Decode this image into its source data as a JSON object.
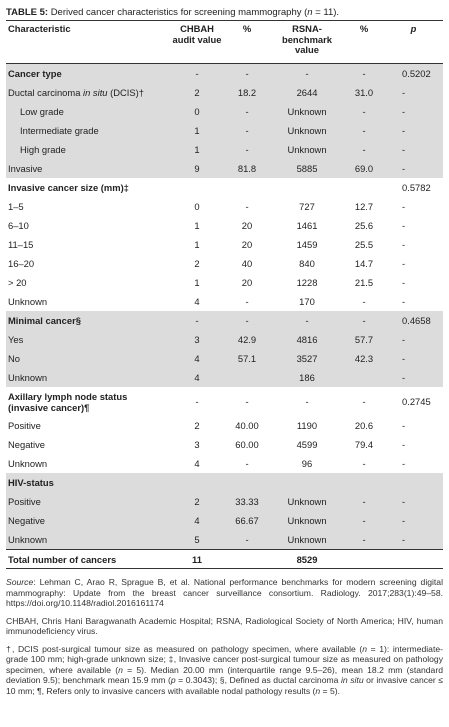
{
  "title": {
    "label": "TABLE 5:",
    "text": "Derived cancer characteristics for screening mammography (",
    "n_italic": "n",
    "n_value": " = 11)."
  },
  "headers": {
    "characteristic": "Characteristic",
    "chbah": "CHBAH audit value",
    "pct1": "%",
    "rsna": "RSNA-benchmark value",
    "pct2": "%",
    "p": "p"
  },
  "rows": [
    {
      "type": "sec",
      "shade": true,
      "label": "Cancer type",
      "v1": "-",
      "p1": "-",
      "v2": "-",
      "p2": "-",
      "p": "0.5202"
    },
    {
      "type": "dcis",
      "shade": true,
      "label_pre": "Ductal carcinoma ",
      "label_ital": "in situ",
      "label_post": " (DCIS)†",
      "v1": "2",
      "p1": "18.2",
      "v2": "2644",
      "p2": "31.0",
      "p": "-"
    },
    {
      "type": "ind",
      "shade": true,
      "label": "Low grade",
      "v1": "0",
      "p1": "-",
      "v2": "Unknown",
      "p2": "-",
      "p": "-"
    },
    {
      "type": "ind",
      "shade": true,
      "label": "Intermediate grade",
      "v1": "1",
      "p1": "-",
      "v2": "Unknown",
      "p2": "-",
      "p": "-"
    },
    {
      "type": "ind",
      "shade": true,
      "label": "High grade",
      "v1": "1",
      "p1": "-",
      "v2": "Unknown",
      "p2": "-",
      "p": "-"
    },
    {
      "type": "row",
      "shade": true,
      "label": "Invasive",
      "v1": "9",
      "p1": "81.8",
      "v2": "5885",
      "p2": "69.0",
      "p": "-"
    },
    {
      "type": "sec",
      "shade": false,
      "label": "Invasive cancer size (mm)‡",
      "v1": "",
      "p1": "",
      "v2": "",
      "p2": "",
      "p": "0.5782"
    },
    {
      "type": "row",
      "shade": false,
      "label": "1–5",
      "v1": "0",
      "p1": "-",
      "v2": "727",
      "p2": "12.7",
      "p": "-"
    },
    {
      "type": "row",
      "shade": false,
      "label": "6–10",
      "v1": "1",
      "p1": "20",
      "v2": "1461",
      "p2": "25.6",
      "p": "-"
    },
    {
      "type": "row",
      "shade": false,
      "label": "11–15",
      "v1": "1",
      "p1": "20",
      "v2": "1459",
      "p2": "25.5",
      "p": "-"
    },
    {
      "type": "row",
      "shade": false,
      "label": "16–20",
      "v1": "2",
      "p1": "40",
      "v2": "840",
      "p2": "14.7",
      "p": "-"
    },
    {
      "type": "row",
      "shade": false,
      "label": "> 20",
      "v1": "1",
      "p1": "20",
      "v2": "1228",
      "p2": "21.5",
      "p": "-"
    },
    {
      "type": "row",
      "shade": false,
      "label": "Unknown",
      "v1": "4",
      "p1": "-",
      "v2": "170",
      "p2": "-",
      "p": "-"
    },
    {
      "type": "sec",
      "shade": true,
      "label": "Minimal cancer§",
      "v1": "-",
      "p1": "-",
      "v2": "-",
      "p2": "-",
      "p": "0.4658"
    },
    {
      "type": "row",
      "shade": true,
      "label": "Yes",
      "v1": "3",
      "p1": "42.9",
      "v2": "4816",
      "p2": "57.7",
      "p": "-"
    },
    {
      "type": "row",
      "shade": true,
      "label": "No",
      "v1": "4",
      "p1": "57.1",
      "v2": "3527",
      "p2": "42.3",
      "p": "-"
    },
    {
      "type": "row",
      "shade": true,
      "label": "Unknown",
      "v1": "4",
      "p1": "",
      "v2": "186",
      "p2": "",
      "p": "-"
    },
    {
      "type": "sec-tall",
      "shade": false,
      "label": "Axillary lymph node status (invasive cancer)¶",
      "v1": "-",
      "p1": "-",
      "v2": "-",
      "p2": "-",
      "p": "0.2745"
    },
    {
      "type": "row",
      "shade": false,
      "label": "Positive",
      "v1": "2",
      "p1": "40.00",
      "v2": "1190",
      "p2": "20.6",
      "p": "-"
    },
    {
      "type": "row",
      "shade": false,
      "label": "Negative",
      "v1": "3",
      "p1": "60.00",
      "v2": "4599",
      "p2": "79.4",
      "p": "-"
    },
    {
      "type": "row",
      "shade": false,
      "label": "Unknown",
      "v1": "4",
      "p1": "-",
      "v2": "96",
      "p2": "-",
      "p": "-"
    },
    {
      "type": "sec",
      "shade": true,
      "label": "HIV-status",
      "v1": "",
      "p1": "",
      "v2": "",
      "p2": "",
      "p": ""
    },
    {
      "type": "row",
      "shade": true,
      "label": "Positive",
      "v1": "2",
      "p1": "33.33",
      "v2": "Unknown",
      "p2": "-",
      "p": "-"
    },
    {
      "type": "row",
      "shade": true,
      "label": "Negative",
      "v1": "4",
      "p1": "66.67",
      "v2": "Unknown",
      "p2": "-",
      "p": "-"
    },
    {
      "type": "row",
      "shade": true,
      "label": "Unknown",
      "v1": "5",
      "p1": "-",
      "v2": "Unknown",
      "p2": "-",
      "p": "-"
    },
    {
      "type": "total",
      "shade": false,
      "label": "Total number of cancers",
      "v1": "11",
      "p1": "",
      "v2": "8529",
      "p2": "",
      "p": ""
    }
  ],
  "notes": {
    "source_label": "Source",
    "source_text": ": Lehman C, Arao R, Sprague B, et al. National performance benchmarks for modern screening digital mammography: Update from the breast cancer surveillance consortium. Radiology. 2017;283(1):49–58. https://doi.org/10.1148/radiol.2016161174",
    "abbrev": "CHBAH, Chris Hani Baragwanath Academic Hospital; RSNA, Radiological Society of North America; HIV, human immunodeficiency virus.",
    "f1": "†, DCIS post-surgical tumour size as measured on pathology specimen, where available (",
    "f_n": "n",
    "f2": " = 1): intermediate-grade 100 mm; high-grade unknown size; ‡, Invasive cancer post-surgical tumour size as measured on pathology specimen, where available (",
    "f3": " = 5). Median 20.00 mm (interquartile range 9.5–26), mean 18.2 mm (standard deviation 9.5); benchmark mean 15.9 mm (",
    "f_p": "p",
    "f4": " = 0.3043); §, Defined as ductal carcinoma ",
    "f_insitu": "in situ",
    "f5": " or invasive cancer ≤ 10 mm; ¶, Refers only to invasive cancers with available nodal pathology results (",
    "f6": " = 5)."
  }
}
